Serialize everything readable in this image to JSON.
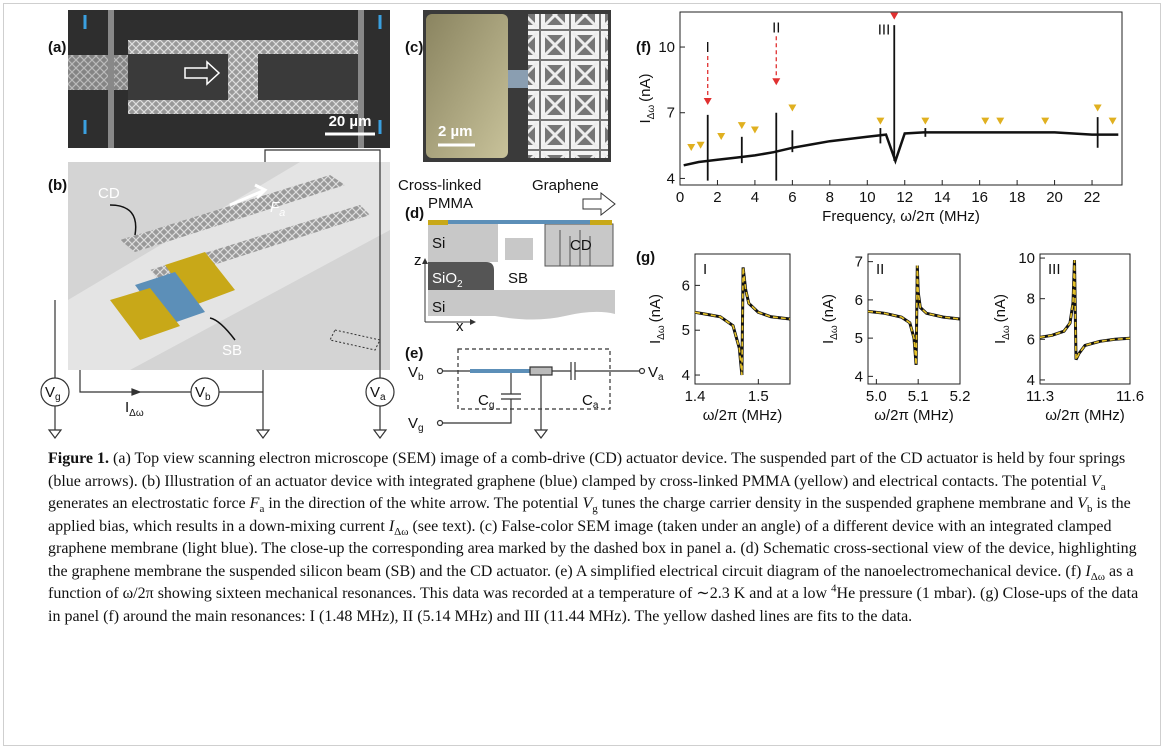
{
  "panels": {
    "a": {
      "label": "(a)",
      "scale_bar": "20 µm"
    },
    "b": {
      "label": "(b)",
      "cd": "CD",
      "force": "F",
      "force_sub": "a",
      "sb": "SB",
      "vg": "V",
      "vg_sub": "g",
      "vb": "V",
      "vb_sub": "b",
      "va": "V",
      "va_sub": "a",
      "current": "I",
      "current_sub": "Δω"
    },
    "c": {
      "label": "(c)",
      "scale_bar": "2 µm"
    },
    "d": {
      "label": "(d)",
      "pmma_1": "Cross-linked",
      "pmma_2": "PMMA",
      "graphene": "Graphene",
      "si_top": "Si",
      "sio2": "SiO",
      "sio2_sub": "2",
      "sb": "SB",
      "cd": "CD",
      "si_bottom": "Si",
      "z": "z",
      "x": "x"
    },
    "e": {
      "label": "(e)",
      "vb": "V",
      "vb_sub": "b",
      "va": "V",
      "va_sub": "a",
      "vg": "V",
      "vg_sub": "g",
      "cg": "C",
      "cg_sub": "g",
      "ca": "C",
      "ca_sub": "a"
    },
    "f": {
      "label": "(f)"
    },
    "g": {
      "label": "(g)"
    }
  },
  "chart_data": [
    {
      "type": "line",
      "color": "#111111",
      "x": [
        0.2,
        1,
        2,
        3,
        4,
        5,
        6,
        7,
        8,
        9,
        10,
        11,
        11.5,
        12,
        13,
        14,
        15,
        16,
        17,
        18,
        19,
        20,
        21,
        22,
        23.4
      ],
      "values": [
        4.6,
        4.75,
        4.85,
        4.95,
        5.05,
        5.2,
        5.4,
        5.55,
        5.7,
        5.8,
        5.9,
        6.0,
        4.8,
        6.05,
        6.1,
        6.1,
        6.1,
        6.1,
        6.1,
        6.1,
        6.1,
        6.1,
        6.05,
        6.0,
        6.0
      ],
      "spikes": {
        "x": [
          1.48,
          3.3,
          5.14,
          6.0,
          10.7,
          11.44,
          13.1,
          22.3
        ],
        "low": [
          3.9,
          4.7,
          3.9,
          5.2,
          5.6,
          4.8,
          5.9,
          5.4
        ],
        "high": [
          6.9,
          5.9,
          7.0,
          6.2,
          6.3,
          11.0,
          6.3,
          6.8
        ]
      },
      "markers": {
        "color": "#e0b020",
        "x": [
          0.6,
          1.1,
          2.2,
          3.3,
          4.0,
          6.0,
          10.7,
          13.1,
          16.3,
          17.1,
          19.5,
          22.3,
          23.1
        ],
        "y": [
          5.3,
          5.4,
          5.8,
          6.3,
          6.1,
          7.1,
          6.5,
          6.5,
          6.5,
          6.5,
          6.5,
          7.1,
          6.5
        ]
      },
      "peaks": {
        "color": "#e03030",
        "x": [
          1.48,
          5.14,
          11.44
        ],
        "y": [
          7.4,
          8.3,
          11.3
        ],
        "labels": [
          "I",
          "II",
          "III"
        ]
      },
      "xlim": [
        0,
        23.6
      ],
      "ylim": [
        3.7,
        11.6
      ],
      "xticks": [
        0,
        2,
        4,
        6,
        8,
        10,
        12,
        14,
        16,
        18,
        20,
        22
      ],
      "yticks": [
        4,
        7,
        10
      ],
      "xlabel": "Frequency, ω/2π (MHz)",
      "ylabel": {
        "base": "I",
        "sub": "Δω",
        "unit": "(nA)"
      }
    },
    {
      "type": "line",
      "label": "I",
      "x": [
        1.4,
        1.42,
        1.44,
        1.46,
        1.47,
        1.474,
        1.476,
        1.48,
        1.485,
        1.5,
        1.52,
        1.55
      ],
      "series": [
        {
          "color": "#111111",
          "values": [
            5.4,
            5.35,
            5.3,
            5.1,
            4.6,
            4.0,
            6.4,
            5.9,
            5.6,
            5.4,
            5.3,
            5.25
          ]
        },
        {
          "color": "#e6c229",
          "dashed": true,
          "values": [
            5.4,
            5.35,
            5.3,
            5.1,
            4.6,
            4.0,
            6.4,
            5.9,
            5.6,
            5.4,
            5.3,
            5.25
          ]
        }
      ],
      "xlim": [
        1.4,
        1.55
      ],
      "ylim": [
        3.8,
        6.7
      ],
      "xticks": [
        1.4,
        1.5
      ],
      "yticks": [
        4,
        5,
        6
      ],
      "xlabel": "ω/2π (MHz)",
      "ylabel": {
        "base": "I",
        "sub": "Δω",
        "unit": "(nA)"
      }
    },
    {
      "type": "line",
      "label": "II",
      "x": [
        4.98,
        5.02,
        5.06,
        5.08,
        5.09,
        5.095,
        5.098,
        5.1,
        5.105,
        5.12,
        5.16,
        5.2
      ],
      "series": [
        {
          "color": "#111111",
          "values": [
            5.7,
            5.65,
            5.55,
            5.4,
            5.0,
            4.3,
            6.9,
            6.2,
            5.8,
            5.65,
            5.55,
            5.5
          ]
        },
        {
          "color": "#e6c229",
          "dashed": true,
          "values": [
            5.7,
            5.65,
            5.55,
            5.4,
            5.0,
            4.3,
            6.9,
            6.2,
            5.8,
            5.65,
            5.55,
            5.5
          ]
        }
      ],
      "xlim": [
        4.98,
        5.2
      ],
      "ylim": [
        3.8,
        7.2
      ],
      "xticks": [
        {
          "value": 5,
          "label": "5.0"
        },
        5.1,
        5.2
      ],
      "yticks": [
        4,
        5,
        6,
        7
      ],
      "xlabel": "ω/2π (MHz)",
      "ylabel": {
        "base": "I",
        "sub": "Δω",
        "unit": "(nA)"
      }
    },
    {
      "type": "line",
      "label": "III",
      "x": [
        11.3,
        11.34,
        11.38,
        11.4,
        11.41,
        11.415,
        11.42,
        11.43,
        11.45,
        11.5,
        11.55,
        11.6
      ],
      "series": [
        {
          "color": "#111111",
          "values": [
            6.1,
            6.2,
            6.4,
            6.8,
            7.8,
            9.9,
            5.0,
            5.3,
            5.7,
            5.9,
            6.0,
            6.05
          ]
        },
        {
          "color": "#e6c229",
          "dashed": true,
          "values": [
            6.1,
            6.2,
            6.4,
            6.8,
            7.8,
            9.9,
            5.0,
            5.3,
            5.7,
            5.9,
            6.0,
            6.05
          ]
        }
      ],
      "xlim": [
        11.3,
        11.6
      ],
      "ylim": [
        3.8,
        10.2
      ],
      "xticks": [
        11.3,
        11.6
      ],
      "yticks": [
        4,
        6,
        8,
        10
      ],
      "xlabel": "ω/2π (MHz)",
      "ylabel": {
        "base": "I",
        "sub": "Δω",
        "unit": "(nA)"
      }
    }
  ],
  "caption": {
    "runs": [
      [
        "b",
        "Figure 1."
      ],
      [
        "",
        "  (a) Top view scanning electron microscope (SEM) image of a comb-drive (CD) actuator device. The suspended part of the CD actuator is held by four springs (blue arrows). (b) Illustration of an actuator device with integrated graphene (blue) clamped by cross-linked PMMA (yellow) and electrical contacts. The potential "
      ],
      [
        "i",
        "V"
      ],
      [
        "sub",
        "a"
      ],
      [
        "",
        " generates an electrostatic force "
      ],
      [
        "i",
        "F"
      ],
      [
        "sub",
        "a"
      ],
      [
        "",
        " in the direction of the white arrow. The potential "
      ],
      [
        "i",
        "V"
      ],
      [
        "sub",
        "g"
      ],
      [
        "",
        " tunes the charge carrier density in the suspended graphene membrane and "
      ],
      [
        "i",
        "V"
      ],
      [
        "sub",
        "b"
      ],
      [
        "",
        " is the applied bias, which results in a down-mixing current "
      ],
      [
        "i",
        "I"
      ],
      [
        "sub",
        "Δω"
      ],
      [
        "",
        " (see text). (c) False-color SEM image (taken under an angle) of a different device with an integrated clamped graphene membrane (light blue). The close-up the corresponding area marked by the dashed box in panel a. (d) Schematic cross-sectional view of the device, highlighting the graphene membrane the suspended silicon beam (SB) and the CD actuator. (e) A simplified electrical circuit diagram of the nanoelectromechanical device. (f) "
      ],
      [
        "i",
        "I"
      ],
      [
        "sub",
        "Δω"
      ],
      [
        "",
        " as a function of ω/2π showing sixteen mechanical resonances. This data was recorded at a temperature of ∼2.3 K and at a low "
      ],
      [
        "sup",
        "4"
      ],
      [
        "",
        "He pressure (1 mbar). (g) Close-ups of the data in panel (f) around the main resonances: I (1.48 MHz), II (5.14 MHz) and III (11.44 MHz). The yellow dashed lines are fits to the data."
      ]
    ]
  }
}
